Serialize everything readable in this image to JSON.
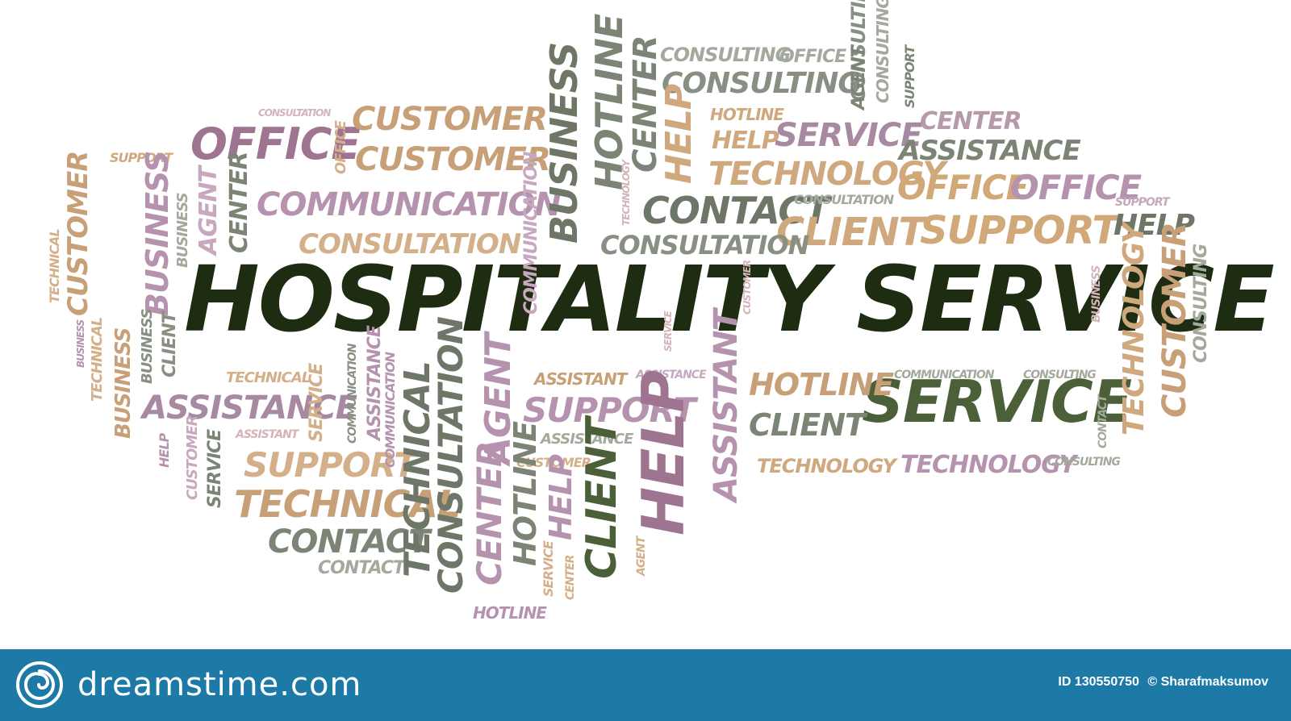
{
  "word_cloud": {
    "words": [
      {
        "text": "HOSPITALITY SERVICE",
        "color": "#1e2d12",
        "hero": true
      },
      {
        "text": "SERVICE",
        "color": "#4b6038"
      },
      {
        "text": "OFFICE",
        "color": "#9e7491"
      },
      {
        "text": "CUSTOMER",
        "color": "#c8a078"
      },
      {
        "text": "CUSTOMER",
        "color": "#c8a078"
      },
      {
        "text": "COMMUNICATION",
        "color": "#b593ae"
      },
      {
        "text": "CONSULTATION",
        "color": "#d3b08a"
      },
      {
        "text": "CONSULTATION",
        "color": "#d3b4b8"
      },
      {
        "text": "SUPPORT",
        "color": "#cfa97d"
      },
      {
        "text": "CONSULTING",
        "color": "#a3aa9d"
      },
      {
        "text": "OFFICE",
        "color": "#a3aa9d"
      },
      {
        "text": "CONSULTING",
        "color": "#888f83"
      },
      {
        "text": "HOTLINE",
        "color": "#cfa97d"
      },
      {
        "text": "HELP",
        "color": "#cfa97d"
      },
      {
        "text": "SERVICE",
        "color": "#a889a2"
      },
      {
        "text": "CENTER",
        "color": "#b79aaa"
      },
      {
        "text": "ASSISTANCE",
        "color": "#7c8575"
      },
      {
        "text": "TECHNOLOGY",
        "color": "#cfa97d"
      },
      {
        "text": "OFFICE",
        "color": "#d1a877"
      },
      {
        "text": "OFFICE",
        "color": "#b593ae"
      },
      {
        "text": "CONTACT",
        "color": "#6e7767"
      },
      {
        "text": "CONSULTATION",
        "color": "#a3aa9d"
      },
      {
        "text": "CLIENT",
        "color": "#cfa97d"
      },
      {
        "text": "SUPPORT",
        "color": "#d1a877"
      },
      {
        "text": "HELP",
        "color": "#6e7767"
      },
      {
        "text": "SUPPORT",
        "color": "#c7a8be"
      },
      {
        "text": "CONSULTATION",
        "color": "#888f83"
      },
      {
        "text": "AGENT",
        "color": "#8f9a87"
      },
      {
        "text": "CLIENT",
        "color": "#a3aa9d"
      },
      {
        "text": "AGENT",
        "color": "#7c8575"
      },
      {
        "text": "SUPPORT",
        "color": "#b593ae"
      },
      {
        "text": "HOTLINE",
        "color": "#6e7767"
      },
      {
        "text": "HOTLINE",
        "color": "#c8a078"
      },
      {
        "text": "TECHNOLOGY",
        "color": "#cfa97d"
      },
      {
        "text": "TECHNOLOGY",
        "color": "#b593ae"
      },
      {
        "text": "ASSISTANCE",
        "color": "#a889a2"
      },
      {
        "text": "ASSISTANT",
        "color": "#d3b4b8"
      },
      {
        "text": "ASSISTANCE",
        "color": "#a3aa9d"
      },
      {
        "text": "ASSISTANT",
        "color": "#c8a078"
      },
      {
        "text": "TECHNICAL",
        "color": "#c8a078"
      },
      {
        "text": "CONTACT",
        "color": "#7c8575"
      },
      {
        "text": "CONTACT",
        "color": "#a3aa9d"
      },
      {
        "text": "TECHNICAL",
        "color": "#d3b08a"
      },
      {
        "text": "TECHNOLOGY",
        "color": "#d3b08a"
      },
      {
        "text": "CONSULTING",
        "color": "#a3aa9d"
      },
      {
        "text": "COMMUNICATION",
        "color": "#a3aa9d"
      },
      {
        "text": "ASSISTANCE",
        "color": "#c7a8be"
      },
      {
        "text": "SUPPORT",
        "color": "#d3b08a"
      },
      {
        "text": "CONSULTATION",
        "color": "#d3b4b8"
      },
      {
        "text": "CONSULTING",
        "color": "#a3aa9d"
      },
      {
        "text": "ASSISTANT",
        "color": "#c7a8be"
      },
      {
        "text": "CUSTOMER",
        "color": "#d3b08a"
      },
      {
        "text": "ASSISTANT",
        "color": "#6e7767"
      },
      {
        "text": "CONTACT",
        "color": "#c8a078"
      },
      {
        "text": "BUSINESS",
        "color": "#b593ae"
      },
      {
        "text": "AGENT",
        "color": "#c7a8be"
      },
      {
        "text": "CENTER",
        "color": "#7c8575"
      },
      {
        "text": "BUSINESS",
        "color": "#a3aa9d"
      },
      {
        "text": "TECHNICAL",
        "color": "#d3b08a"
      },
      {
        "text": "COMMUNICATION",
        "color": "#c7a8be"
      },
      {
        "text": "BUSINESS",
        "color": "#6e7767"
      },
      {
        "text": "HOTLINE",
        "color": "#7c8575"
      },
      {
        "text": "CENTER",
        "color": "#7c8575"
      },
      {
        "text": "HELP",
        "color": "#cfa97d"
      },
      {
        "text": "CONSULTING",
        "color": "#888f83"
      },
      {
        "text": "AGENT",
        "color": "#7c8575"
      },
      {
        "text": "CLIENT",
        "color": "#7c8575"
      },
      {
        "text": "SUPPORT",
        "color": "#7c8575"
      },
      {
        "text": "HELP",
        "color": "#9e7491"
      },
      {
        "text": "ASSISTANT",
        "color": "#b593ae"
      },
      {
        "text": "CONSULTATION",
        "color": "#6e7767"
      },
      {
        "text": "TECHNICAL",
        "color": "#6e7767"
      },
      {
        "text": "CENTER",
        "color": "#b593ae"
      },
      {
        "text": "HOTLINE",
        "color": "#7c8575"
      },
      {
        "text": "HELP",
        "color": "#b593ae"
      },
      {
        "text": "CLIENT",
        "color": "#4b6038"
      },
      {
        "text": "AGENT",
        "color": "#b593ae"
      },
      {
        "text": "TECHNOLOGY",
        "color": "#cfa97d"
      },
      {
        "text": "CUSTOMER",
        "color": "#c8a078"
      },
      {
        "text": "CONSULTING",
        "color": "#a3aa9d"
      },
      {
        "text": "BUSINESS",
        "color": "#d3b4b8"
      },
      {
        "text": "SERVICE",
        "color": "#d3b08a"
      },
      {
        "text": "SERVICE",
        "color": "#7c8575"
      },
      {
        "text": "CUSTOMER",
        "color": "#c7a8be"
      },
      {
        "text": "HELP",
        "color": "#b593ae"
      },
      {
        "text": "SERVICE",
        "color": "#d3b08a"
      },
      {
        "text": "CENTER",
        "color": "#d3b08a"
      },
      {
        "text": "HOTLINE",
        "color": "#b593ae"
      },
      {
        "text": "OFFICE",
        "color": "#d3b08a"
      },
      {
        "text": "BUSINESS",
        "color": "#b593ae"
      },
      {
        "text": "CLIENT",
        "color": "#888f83"
      },
      {
        "text": "BUSINESS",
        "color": "#888f83"
      },
      {
        "text": "TECHNICAL",
        "color": "#d3b08a"
      },
      {
        "text": "COMMUNICATION",
        "color": "#888f83"
      },
      {
        "text": "TECHNOLOGY",
        "color": "#d3b4b8"
      },
      {
        "text": "CUSTOMER",
        "color": "#d3b4b8"
      },
      {
        "text": "SERVICE",
        "color": "#d3b4b8"
      },
      {
        "text": "ASSISTANCE",
        "color": "#b593ae"
      },
      {
        "text": "COMMUNICATION",
        "color": "#b593ae"
      },
      {
        "text": "CUSTOMER",
        "color": "#c8a078"
      },
      {
        "text": "CONSULTING",
        "color": "#a3aa9d"
      },
      {
        "text": "BUSINESS",
        "color": "#c8a078"
      },
      {
        "text": "CONTACT",
        "color": "#a3aa9d"
      },
      {
        "text": "AGENT",
        "color": "#d3b08a"
      },
      {
        "text": "CONTACT",
        "color": "#888f83"
      }
    ]
  },
  "footer": {
    "brand_name": "dreamstime.com",
    "id_label": "ID 130550750",
    "author": "© Sharafmaksumov",
    "background_color": "#1d7aa7"
  }
}
